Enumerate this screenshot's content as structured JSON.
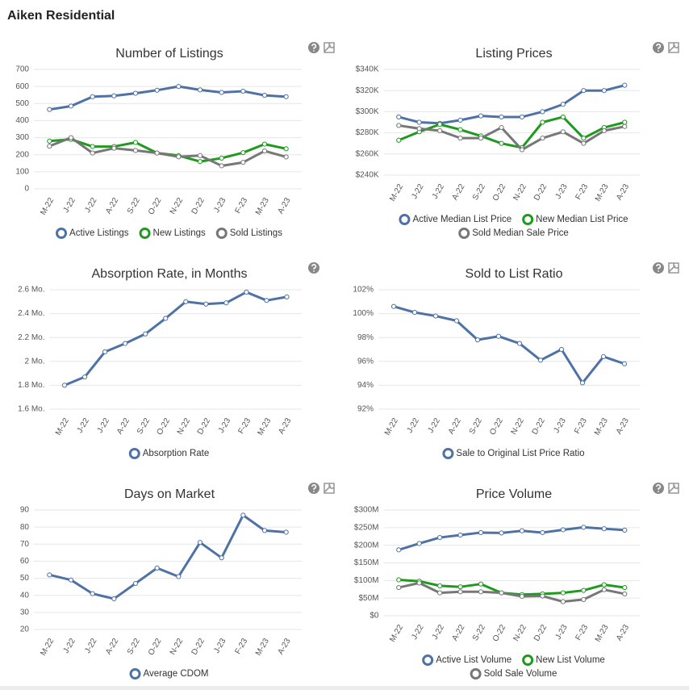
{
  "title": "Aiken Residential",
  "chart_data": [
    {
      "type": "line",
      "title": "Number of Listings",
      "categories": [
        "M-22",
        "J-22",
        "J-22",
        "A-22",
        "S-22",
        "O-22",
        "N-22",
        "D-22",
        "J-23",
        "F-23",
        "M-23",
        "A-23"
      ],
      "series": [
        {
          "name": "Active Listings",
          "color": "#4e72a6",
          "values": [
            465,
            485,
            540,
            545,
            560,
            578,
            600,
            580,
            565,
            572,
            548,
            540
          ]
        },
        {
          "name": "New Listings",
          "color": "#1f9a1f",
          "values": [
            280,
            290,
            248,
            248,
            272,
            210,
            195,
            160,
            180,
            212,
            262,
            235
          ]
        },
        {
          "name": "Sold Listings",
          "color": "#777777",
          "values": [
            250,
            300,
            210,
            238,
            225,
            210,
            188,
            195,
            135,
            155,
            222,
            187
          ]
        }
      ],
      "ylim": [
        0,
        700
      ],
      "yticks": [
        0,
        100,
        200,
        300,
        400,
        500,
        600,
        700
      ],
      "grid": true
    },
    {
      "type": "line",
      "title": "Listing Prices",
      "categories": [
        "M-22",
        "J-22",
        "J-22",
        "A-22",
        "S-22",
        "O-22",
        "N-22",
        "D-22",
        "J-23",
        "F-23",
        "M-23",
        "A-23"
      ],
      "series": [
        {
          "name": "Active Median List Price",
          "color": "#4e72a6",
          "values": [
            295000,
            290000,
            289000,
            292000,
            296000,
            295000,
            295000,
            300000,
            307000,
            320000,
            320000,
            325000
          ]
        },
        {
          "name": "New Median List Price",
          "color": "#1f9a1f",
          "values": [
            273000,
            281000,
            288000,
            283000,
            277000,
            270000,
            266000,
            290000,
            295000,
            275000,
            285000,
            290000
          ]
        },
        {
          "name": "Sold Median Sale Price",
          "color": "#777777",
          "values": [
            287000,
            284000,
            282000,
            275000,
            275000,
            285000,
            264000,
            275000,
            281000,
            270000,
            282000,
            286000
          ]
        }
      ],
      "ylim": [
        240000,
        340000
      ],
      "yticks": [
        {
          "value": 240000,
          "label": "$240K"
        },
        {
          "value": 260000,
          "label": "$260K"
        },
        {
          "value": 280000,
          "label": "$280K"
        },
        {
          "value": 300000,
          "label": "$300K"
        },
        {
          "value": 320000,
          "label": "$320K"
        },
        {
          "value": 340000,
          "label": "$340K"
        }
      ],
      "grid": true
    },
    {
      "type": "line",
      "title": "Absorption Rate, in Months",
      "categories": [
        "M-22",
        "J-22",
        "J-22",
        "A-22",
        "S-22",
        "O-22",
        "N-22",
        "D-22",
        "J-23",
        "F-23",
        "M-23",
        "A-23"
      ],
      "series": [
        {
          "name": "Absorption Rate",
          "color": "#4e72a6",
          "values": [
            1.8,
            1.87,
            2.08,
            2.15,
            2.23,
            2.36,
            2.5,
            2.48,
            2.49,
            2.58,
            2.51,
            2.54
          ]
        }
      ],
      "ylim": [
        1.6,
        2.6
      ],
      "yticks": [
        {
          "value": 1.6,
          "label": "1.6 Mo."
        },
        {
          "value": 1.8,
          "label": "1.8 Mo."
        },
        {
          "value": 2,
          "label": "2 Mo."
        },
        {
          "value": 2.2,
          "label": "2.2 Mo."
        },
        {
          "value": 2.4,
          "label": "2.4 Mo."
        },
        {
          "value": 2.6,
          "label": "2.6 Mo."
        }
      ],
      "grid": true
    },
    {
      "type": "line",
      "title": "Sold to List Ratio",
      "categories": [
        "M-22",
        "J-22",
        "J-22",
        "A-22",
        "S-22",
        "O-22",
        "N-22",
        "D-22",
        "J-23",
        "F-23",
        "M-23",
        "A-23"
      ],
      "series": [
        {
          "name": "Sale to Original List Price Ratio",
          "color": "#4e72a6",
          "values": [
            100.6,
            100.1,
            99.8,
            99.4,
            97.8,
            98.1,
            97.5,
            96.1,
            97.0,
            94.2,
            96.4,
            95.8
          ]
        }
      ],
      "ylim": [
        92,
        102
      ],
      "yticks": [
        {
          "value": 92,
          "label": "92%"
        },
        {
          "value": 94,
          "label": "94%"
        },
        {
          "value": 96,
          "label": "96%"
        },
        {
          "value": 98,
          "label": "98%"
        },
        {
          "value": 100,
          "label": "100%"
        },
        {
          "value": 102,
          "label": "102%"
        }
      ],
      "grid": true
    },
    {
      "type": "line",
      "title": "Days on Market",
      "categories": [
        "M-22",
        "J-22",
        "J-22",
        "A-22",
        "S-22",
        "O-22",
        "N-22",
        "D-22",
        "J-23",
        "F-23",
        "M-23",
        "A-23"
      ],
      "series": [
        {
          "name": "Average CDOM",
          "color": "#4e72a6",
          "values": [
            52,
            49,
            41,
            38,
            47,
            56,
            51,
            71,
            62,
            87,
            78,
            77
          ]
        }
      ],
      "ylim": [
        20,
        90
      ],
      "yticks": [
        20,
        30,
        40,
        50,
        60,
        70,
        80,
        90
      ],
      "grid": true
    },
    {
      "type": "line",
      "title": "Price Volume",
      "categories": [
        "M-22",
        "J-22",
        "J-22",
        "A-22",
        "S-22",
        "O-22",
        "N-22",
        "D-22",
        "J-23",
        "F-23",
        "M-23",
        "A-23"
      ],
      "series": [
        {
          "name": "Active List Volume",
          "color": "#4e72a6",
          "values": [
            187000000,
            205000000,
            222000000,
            229000000,
            236000000,
            235000000,
            241000000,
            236000000,
            244000000,
            251000000,
            247000000,
            243000000
          ]
        },
        {
          "name": "New List Volume",
          "color": "#1f9a1f",
          "values": [
            102000000,
            98000000,
            85000000,
            82000000,
            90000000,
            65000000,
            60000000,
            62000000,
            65000000,
            72000000,
            88000000,
            80000000
          ]
        },
        {
          "name": "Sold Sale Volume",
          "color": "#777777",
          "values": [
            80000000,
            93000000,
            65000000,
            68000000,
            68000000,
            65000000,
            55000000,
            56000000,
            40000000,
            46000000,
            74000000,
            62000000
          ]
        }
      ],
      "ylim": [
        0,
        300000000
      ],
      "yticks": [
        {
          "value": 0,
          "label": "$0"
        },
        {
          "value": 50000000,
          "label": "$50M"
        },
        {
          "value": 100000000,
          "label": "$100M"
        },
        {
          "value": 150000000,
          "label": "$150M"
        },
        {
          "value": 200000000,
          "label": "$200M"
        },
        {
          "value": 250000000,
          "label": "$250M"
        },
        {
          "value": 300000000,
          "label": "$300M"
        }
      ],
      "grid": true
    }
  ]
}
